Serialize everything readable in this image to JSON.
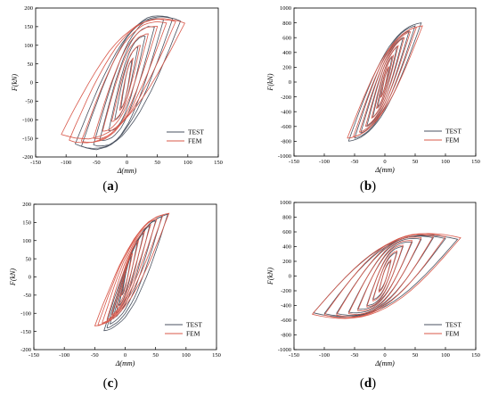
{
  "figure": {
    "colors": {
      "test": "#4a5260",
      "fem": "#d8584a"
    },
    "captions": [
      {
        "open": "(",
        "label": "a",
        "close": ")"
      },
      {
        "open": "(",
        "label": "b",
        "close": ")"
      },
      {
        "open": "(",
        "label": "c",
        "close": ")"
      },
      {
        "open": "(",
        "label": "d",
        "close": ")"
      }
    ]
  },
  "chart_data": [
    {
      "type": "line",
      "panel": "a",
      "xlabel": "Δ(mm)",
      "ylabel": "F(kN)",
      "xlim": [
        -150,
        150
      ],
      "ylim": [
        -200,
        200
      ],
      "xticks": [
        -150,
        -100,
        -50,
        0,
        50,
        100,
        150
      ],
      "yticks": [
        -200,
        -150,
        -100,
        -50,
        0,
        50,
        100,
        150,
        200
      ],
      "grid": false,
      "legend_position": "bottom-right",
      "series": [
        {
          "name": "TEST",
          "color": "#4a5260",
          "peaks_pos": [
            [
              8,
              60
            ],
            [
              18,
              95
            ],
            [
              30,
              125
            ],
            [
              45,
              150
            ],
            [
              60,
              168
            ],
            [
              75,
              172
            ],
            [
              88,
              165
            ],
            [
              100,
              160
            ]
          ],
          "peaks_neg": [
            [
              -10,
              -70
            ],
            [
              -20,
              -100
            ],
            [
              -30,
              -130
            ],
            [
              -45,
              -155
            ],
            [
              -55,
              -168
            ],
            [
              -75,
              -172
            ],
            [
              -85,
              -165
            ]
          ],
          "backbone_note": "hysteresis loops"
        },
        {
          "name": "FEM",
          "color": "#d8584a",
          "peaks_pos": [
            [
              10,
              65
            ],
            [
              22,
              100
            ],
            [
              35,
              130
            ],
            [
              50,
              150
            ],
            [
              65,
              160
            ],
            [
              80,
              163
            ],
            [
              95,
              160
            ],
            [
              105,
              150
            ]
          ],
          "peaks_neg": [
            [
              -12,
              -75
            ],
            [
              -25,
              -105
            ],
            [
              -40,
              -130
            ],
            [
              -55,
              -150
            ],
            [
              -75,
              -158
            ],
            [
              -95,
              -155
            ],
            [
              -108,
              -140
            ]
          ],
          "backbone_note": "hysteresis loops"
        }
      ]
    },
    {
      "type": "line",
      "panel": "b",
      "xlabel": "Δ(mm)",
      "ylabel": "F(kN)",
      "xlim": [
        -150,
        150
      ],
      "ylim": [
        -1000,
        1000
      ],
      "xticks": [
        -150,
        -100,
        -50,
        0,
        50,
        100,
        150
      ],
      "yticks": [
        -1000,
        -800,
        -600,
        -400,
        -200,
        0,
        200,
        400,
        600,
        800,
        1000
      ],
      "grid": false,
      "legend_position": "bottom-right",
      "series": [
        {
          "name": "TEST",
          "color": "#4a5260",
          "peaks_pos": [
            [
              6,
              200
            ],
            [
              12,
              350
            ],
            [
              20,
              480
            ],
            [
              30,
              600
            ],
            [
              40,
              690
            ],
            [
              50,
              760
            ],
            [
              60,
              800
            ]
          ],
          "peaks_neg": [
            [
              -6,
              -200
            ],
            [
              -12,
              -350
            ],
            [
              -20,
              -480
            ],
            [
              -30,
              -600
            ],
            [
              -40,
              -690
            ],
            [
              -50,
              -760
            ],
            [
              -60,
              -800
            ]
          ]
        },
        {
          "name": "FEM",
          "color": "#d8584a",
          "peaks_pos": [
            [
              7,
              210
            ],
            [
              14,
              360
            ],
            [
              22,
              490
            ],
            [
              32,
              600
            ],
            [
              42,
              680
            ],
            [
              52,
              740
            ],
            [
              62,
              760
            ]
          ],
          "peaks_neg": [
            [
              -7,
              -210
            ],
            [
              -14,
              -360
            ],
            [
              -22,
              -490
            ],
            [
              -32,
              -600
            ],
            [
              -42,
              -680
            ],
            [
              -52,
              -740
            ],
            [
              -62,
              -760
            ]
          ]
        }
      ]
    },
    {
      "type": "line",
      "panel": "c",
      "xlabel": "Δ(mm)",
      "ylabel": "F(kN)",
      "xlim": [
        -150,
        150
      ],
      "ylim": [
        -200,
        200
      ],
      "xticks": [
        -150,
        -100,
        -50,
        0,
        50,
        100,
        150
      ],
      "yticks": [
        -200,
        -150,
        -100,
        -50,
        0,
        50,
        100,
        150,
        200
      ],
      "grid": false,
      "legend_position": "bottom-right",
      "series": [
        {
          "name": "TEST",
          "color": "#4a5260",
          "peaks_pos": [
            [
              10,
              60
            ],
            [
              20,
              95
            ],
            [
              30,
              120
            ],
            [
              40,
              140
            ],
            [
              50,
              155
            ],
            [
              60,
              165
            ],
            [
              70,
              172
            ]
          ],
          "peaks_neg": [
            [
              -5,
              -50
            ],
            [
              -10,
              -80
            ],
            [
              -15,
              -100
            ],
            [
              -20,
              -115
            ],
            [
              -25,
              -130
            ],
            [
              -30,
              -140
            ],
            [
              -35,
              -148
            ]
          ]
        },
        {
          "name": "FEM",
          "color": "#d8584a",
          "peaks_pos": [
            [
              12,
              65
            ],
            [
              22,
              100
            ],
            [
              32,
              125
            ],
            [
              42,
              145
            ],
            [
              52,
              160
            ],
            [
              62,
              170
            ],
            [
              72,
              175
            ]
          ],
          "peaks_neg": [
            [
              -8,
              -55
            ],
            [
              -15,
              -85
            ],
            [
              -22,
              -105
            ],
            [
              -30,
              -118
            ],
            [
              -38,
              -128
            ],
            [
              -45,
              -133
            ],
            [
              -50,
              -135
            ]
          ]
        }
      ]
    },
    {
      "type": "line",
      "panel": "d",
      "xlabel": "Δ(mm)",
      "ylabel": "F(kN)",
      "xlim": [
        -150,
        150
      ],
      "ylim": [
        -1000,
        1000
      ],
      "xticks": [
        -150,
        -100,
        -50,
        0,
        50,
        100,
        150
      ],
      "yticks": [
        -1000,
        -800,
        -600,
        -400,
        -200,
        0,
        200,
        400,
        600,
        800,
        1000
      ],
      "grid": false,
      "legend_position": "bottom-right",
      "series": [
        {
          "name": "TEST",
          "color": "#4a5260",
          "peaks_pos": [
            [
              10,
              200
            ],
            [
              20,
              320
            ],
            [
              30,
              400
            ],
            [
              45,
              460
            ],
            [
              60,
              500
            ],
            [
              80,
              520
            ],
            [
              100,
              510
            ],
            [
              120,
              500
            ]
          ],
          "peaks_neg": [
            [
              -10,
              -200
            ],
            [
              -20,
              -320
            ],
            [
              -30,
              -400
            ],
            [
              -45,
              -450
            ],
            [
              -60,
              -490
            ],
            [
              -80,
              -510
            ],
            [
              -100,
              -510
            ],
            [
              -118,
              -500
            ]
          ]
        },
        {
          "name": "FEM",
          "color": "#d8584a",
          "peaks_pos": [
            [
              10,
              220
            ],
            [
              20,
              340
            ],
            [
              30,
              420
            ],
            [
              45,
              480
            ],
            [
              60,
              520
            ],
            [
              80,
              540
            ],
            [
              100,
              535
            ],
            [
              125,
              520
            ]
          ],
          "peaks_neg": [
            [
              -10,
              -220
            ],
            [
              -20,
              -340
            ],
            [
              -30,
              -420
            ],
            [
              -45,
              -470
            ],
            [
              -60,
              -510
            ],
            [
              -80,
              -530
            ],
            [
              -100,
              -530
            ],
            [
              -120,
              -520
            ]
          ]
        }
      ]
    }
  ]
}
